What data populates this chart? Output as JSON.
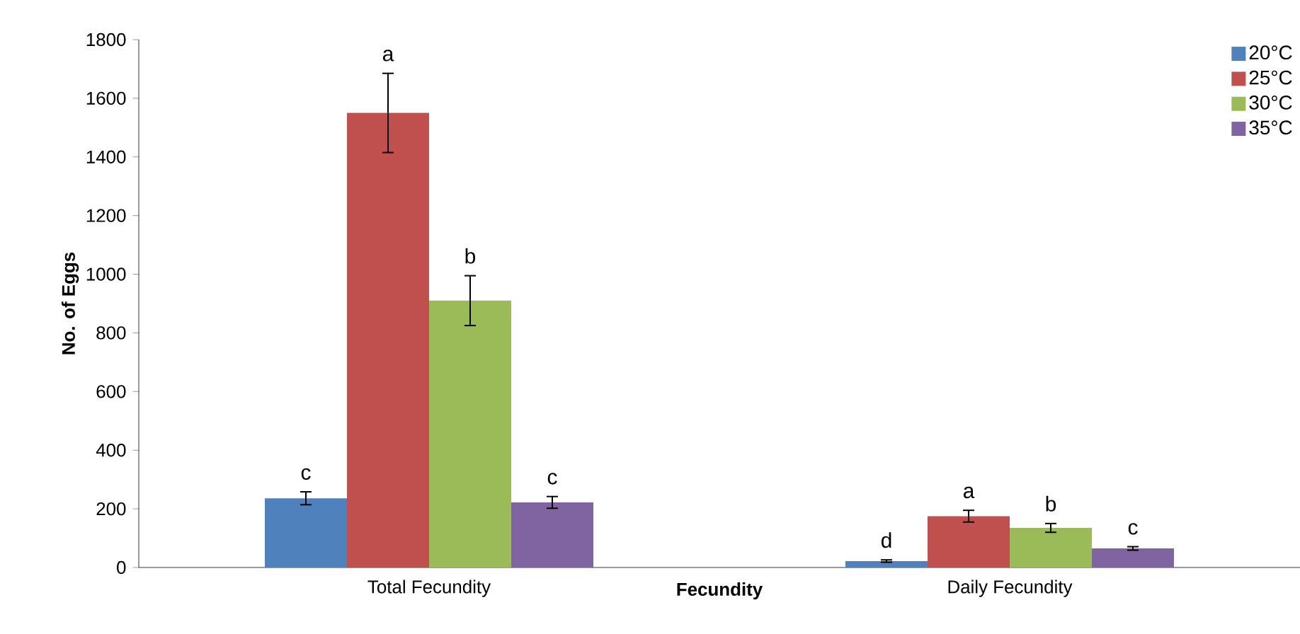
{
  "chart_data": {
    "type": "bar",
    "xlabel": "Fecundity",
    "ylabel": "No. of Eggs",
    "categories": [
      "Total Fecundity",
      "Daily Fecundity"
    ],
    "series": [
      {
        "name": "20°C",
        "color": "#4f81bd",
        "values": [
          236,
          22
        ],
        "errors": [
          22,
          4
        ]
      },
      {
        "name": "25°C",
        "color": "#c0504d",
        "values": [
          1550,
          175
        ],
        "errors": [
          135,
          20
        ]
      },
      {
        "name": "30°C",
        "color": "#9bbb59",
        "values": [
          910,
          135
        ],
        "errors": [
          85,
          15
        ]
      },
      {
        "name": "35°C",
        "color": "#8064a2",
        "values": [
          222,
          65
        ],
        "errors": [
          20,
          6
        ]
      }
    ],
    "annotations": [
      "c",
      "a",
      "b",
      "c",
      "d",
      "a",
      "b",
      "c"
    ],
    "ylim": [
      0,
      1800
    ],
    "yticks": [
      0,
      200,
      400,
      600,
      800,
      1000,
      1200,
      1400,
      1600,
      1800
    ],
    "grid": false,
    "legend": "top right"
  }
}
